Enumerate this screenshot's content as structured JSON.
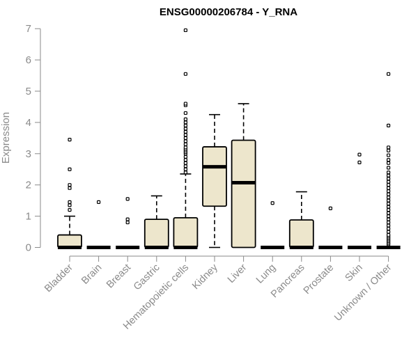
{
  "chart_data": {
    "type": "box",
    "title": "ENSG00000206784 - Y_RNA",
    "xlabel": "",
    "ylabel": "Expression",
    "ylim": [
      0,
      7
    ],
    "yticks": [
      0,
      1,
      2,
      3,
      4,
      5,
      6,
      7
    ],
    "grid": false,
    "categories": [
      "Bladder",
      "Brain",
      "Breast",
      "Gastric",
      "Hematopoietic cells",
      "Kidney",
      "Liver",
      "Lung",
      "Pancreas",
      "Prostate",
      "Skin",
      "Unknown / Other"
    ],
    "box_color": "#ede6cc",
    "boxes": [
      {
        "category": "Bladder",
        "whisker_low": 0,
        "q1": 0,
        "median": 0,
        "q3": 0.4,
        "whisker_high": 1.0,
        "outliers": [
          1.2,
          1.35,
          1.45,
          1.9,
          2.0,
          2.5,
          3.45
        ]
      },
      {
        "category": "Brain",
        "whisker_low": 0,
        "q1": 0,
        "median": 0,
        "q3": 0,
        "whisker_high": 0,
        "outliers": [
          1.45
        ]
      },
      {
        "category": "Breast",
        "whisker_low": 0,
        "q1": 0,
        "median": 0,
        "q3": 0,
        "whisker_high": 0,
        "outliers": [
          0.8,
          0.9,
          1.55
        ]
      },
      {
        "category": "Gastric",
        "whisker_low": 0,
        "q1": 0,
        "median": 0,
        "q3": 0.9,
        "whisker_high": 1.65,
        "outliers": []
      },
      {
        "category": "Hematopoietic cells",
        "whisker_low": 0,
        "q1": 0,
        "median": 0,
        "q3": 0.95,
        "whisker_high": 2.35,
        "outliers": [
          2.4,
          2.5,
          2.6,
          2.7,
          2.8,
          2.9,
          3.0,
          3.05,
          3.1,
          3.15,
          3.2,
          3.3,
          3.4,
          3.5,
          3.6,
          3.7,
          3.8,
          3.9,
          4.0,
          4.1,
          4.3,
          4.55,
          4.6,
          5.55,
          6.95
        ]
      },
      {
        "category": "Kidney",
        "whisker_low": 0,
        "q1": 1.32,
        "median": 2.58,
        "q3": 3.22,
        "whisker_high": 4.25,
        "outliers": []
      },
      {
        "category": "Liver",
        "whisker_low": 0,
        "q1": 0,
        "median": 2.07,
        "q3": 3.43,
        "whisker_high": 4.6,
        "outliers": []
      },
      {
        "category": "Lung",
        "whisker_low": 0,
        "q1": 0,
        "median": 0,
        "q3": 0,
        "whisker_high": 0,
        "outliers": [
          1.42
        ]
      },
      {
        "category": "Pancreas",
        "whisker_low": 0,
        "q1": 0,
        "median": 0,
        "q3": 0.88,
        "whisker_high": 1.78,
        "outliers": []
      },
      {
        "category": "Prostate",
        "whisker_low": 0,
        "q1": 0,
        "median": 0,
        "q3": 0,
        "whisker_high": 0,
        "outliers": [
          1.25
        ]
      },
      {
        "category": "Skin",
        "whisker_low": 0,
        "q1": 0,
        "median": 0,
        "q3": 0,
        "whisker_high": 0,
        "outliers": [
          2.72,
          2.97
        ]
      },
      {
        "category": "Unknown / Other",
        "whisker_low": 0,
        "q1": 0,
        "median": 0,
        "q3": 0,
        "whisker_high": 0,
        "outliers": [
          0.1,
          0.15,
          0.2,
          0.25,
          0.3,
          0.35,
          0.4,
          0.5,
          0.6,
          0.7,
          0.8,
          0.9,
          1.0,
          1.1,
          1.2,
          1.3,
          1.4,
          1.5,
          1.6,
          1.7,
          1.8,
          1.9,
          2.0,
          2.1,
          2.2,
          2.3,
          2.4,
          2.55,
          2.7,
          2.8,
          2.95,
          3.1,
          3.2,
          3.9,
          5.55
        ]
      }
    ]
  }
}
